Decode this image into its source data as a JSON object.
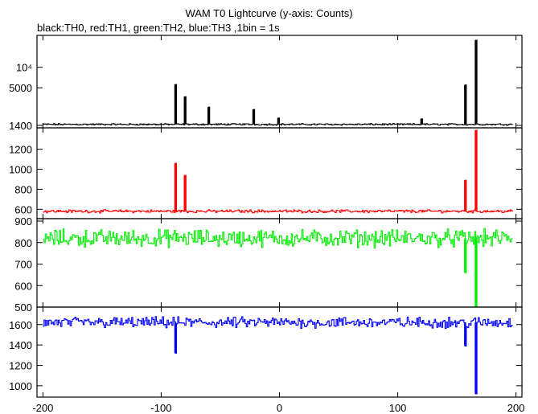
{
  "chart_data": {
    "type": "line",
    "title": "WAM T0 Lightcurve (y-axis: Counts)",
    "subtitle": "black:TH0, red:TH1, green:TH2, blue:TH3 ,1bin = 1s",
    "x_ticks": [
      "-200",
      "-100",
      "0",
      "100",
      "200"
    ],
    "xlim": [
      -205,
      205
    ],
    "grid": false,
    "panels": [
      {
        "name": "TH0",
        "color": "#000000",
        "scale": "log",
        "ylim": [
          1400,
          25000
        ],
        "y_ticks": [
          {
            "value": 1400,
            "label": "1400"
          },
          {
            "value": 5000,
            "label": "5000"
          },
          {
            "value": 10000,
            "label": "10⁴"
          }
        ],
        "baseline": 1450,
        "noise": 60,
        "spikes": [
          {
            "x": -88,
            "y": 5600
          },
          {
            "x": -80,
            "y": 3700
          },
          {
            "x": -60,
            "y": 2600
          },
          {
            "x": -22,
            "y": 2400
          },
          {
            "x": -1,
            "y": 1800
          },
          {
            "x": 120,
            "y": 1750
          },
          {
            "x": 157,
            "y": 5500
          },
          {
            "x": 166,
            "y": 25000
          }
        ]
      },
      {
        "name": "TH1",
        "color": "#ff0000",
        "scale": "linear",
        "ylim": [
          530,
          1390
        ],
        "y_ticks": [
          {
            "value": 600,
            "label": "600"
          },
          {
            "value": 800,
            "label": "800"
          },
          {
            "value": 1000,
            "label": "1000"
          },
          {
            "value": 1200,
            "label": "1200"
          }
        ],
        "baseline": 580,
        "noise": 22,
        "spikes": [
          {
            "x": -88,
            "y": 1060
          },
          {
            "x": -80,
            "y": 940
          },
          {
            "x": 157,
            "y": 890
          },
          {
            "x": 166,
            "y": 1390
          }
        ]
      },
      {
        "name": "TH2",
        "color": "#00ee00",
        "scale": "linear",
        "ylim": [
          500,
          900
        ],
        "y_ticks": [
          {
            "value": 500,
            "label": "500"
          },
          {
            "value": 600,
            "label": "600"
          },
          {
            "value": 700,
            "label": "700"
          },
          {
            "value": 800,
            "label": "800"
          },
          {
            "value": 900,
            "label": "900"
          }
        ],
        "baseline": 820,
        "noise": 60,
        "spikes": [
          {
            "x": 157,
            "y": 660
          },
          {
            "x": 166,
            "y": 500
          }
        ]
      },
      {
        "name": "TH3",
        "color": "#0000ff",
        "scale": "linear",
        "ylim": [
          920,
          1740
        ],
        "y_ticks": [
          {
            "value": 1000,
            "label": "1000"
          },
          {
            "value": 1200,
            "label": "1200"
          },
          {
            "value": 1400,
            "label": "1400"
          },
          {
            "value": 1600,
            "label": "1600"
          }
        ],
        "baseline": 1620,
        "noise": 80,
        "spikes": [
          {
            "x": -88,
            "y": 1320
          },
          {
            "x": 157,
            "y": 1390
          },
          {
            "x": 166,
            "y": 920
          }
        ]
      }
    ]
  }
}
